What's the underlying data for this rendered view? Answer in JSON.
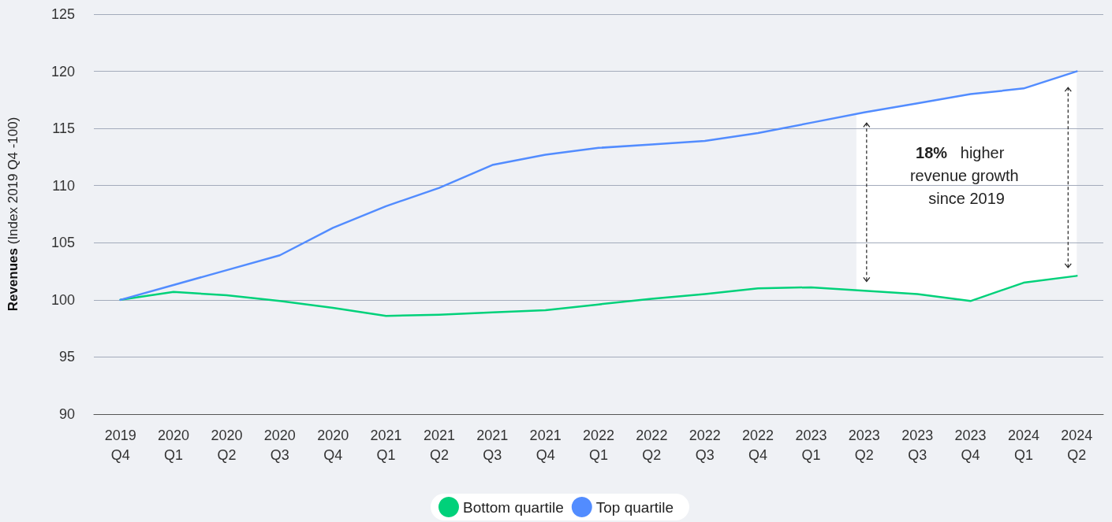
{
  "chart_data": {
    "type": "line",
    "ylabel": "Revenues (Index 2019 Q4 -100)",
    "categories": [
      "2019 Q4",
      "2020 Q1",
      "2020 Q2",
      "2020 Q3",
      "2020 Q4",
      "2021 Q1",
      "2021 Q2",
      "2021 Q3",
      "2021 Q4",
      "2022 Q1",
      "2022 Q2",
      "2022 Q3",
      "2022 Q4",
      "2023 Q1",
      "2023 Q2",
      "2023 Q3",
      "2023 Q4",
      "2024 Q1",
      "2024 Q2"
    ],
    "series": [
      {
        "name": "Bottom quartile",
        "color": "#00d17a",
        "values": [
          100,
          100.7,
          100.4,
          99.9,
          99.3,
          98.6,
          98.7,
          98.9,
          99.1,
          99.6,
          100.1,
          100.5,
          101.0,
          101.1,
          100.8,
          100.5,
          99.9,
          101.5,
          102.1
        ]
      },
      {
        "name": "Top quartile",
        "color": "#528cff",
        "values": [
          100,
          101.3,
          102.6,
          103.9,
          106.3,
          108.2,
          109.8,
          111.8,
          112.7,
          113.3,
          113.6,
          113.9,
          114.6,
          115.5,
          116.4,
          117.2,
          118.0,
          118.5,
          120
        ]
      }
    ],
    "ylim": [
      90,
      125
    ],
    "yticks": [
      90,
      95,
      100,
      105,
      110,
      115,
      120,
      125
    ],
    "grid": "y",
    "legend": "bottom",
    "marker": "none",
    "line_style": "solid",
    "annotations": [
      "18% higher revenue growth since 2019"
    ]
  }
}
